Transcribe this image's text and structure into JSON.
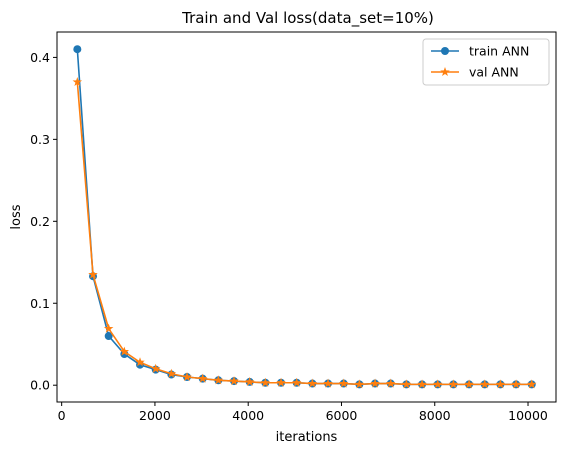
{
  "chart_data": {
    "type": "line",
    "title": "Train and Val loss(data_set=10%)",
    "xlabel": "iterations",
    "ylabel": "loss",
    "xlim": [
      -100,
      10600
    ],
    "ylim": [
      -0.0205,
      0.431
    ],
    "xticks": [
      0,
      2000,
      4000,
      6000,
      8000,
      10000
    ],
    "xtick_labels": [
      "0",
      "2000",
      "4000",
      "6000",
      "8000",
      "10000"
    ],
    "yticks": [
      0.0,
      0.1,
      0.2,
      0.3,
      0.4
    ],
    "ytick_labels": [
      "0.0",
      "0.1",
      "0.2",
      "0.3",
      "0.4"
    ],
    "grid": false,
    "legend_position": "top-right",
    "x": [
      336,
      672,
      1008,
      1344,
      1680,
      2016,
      2352,
      2688,
      3024,
      3360,
      3696,
      4032,
      4368,
      4704,
      5040,
      5376,
      5712,
      6048,
      6384,
      6720,
      7056,
      7392,
      7728,
      8064,
      8400,
      8736,
      9072,
      9408,
      9744,
      10080
    ],
    "series": [
      {
        "name": "train ANN",
        "color": "#1f77b4",
        "marker": "circle",
        "values": [
          0.41,
          0.133,
          0.06,
          0.038,
          0.025,
          0.019,
          0.013,
          0.01,
          0.008,
          0.006,
          0.005,
          0.004,
          0.003,
          0.003,
          0.003,
          0.002,
          0.002,
          0.002,
          0.001,
          0.002,
          0.002,
          0.001,
          0.001,
          0.001,
          0.001,
          0.001,
          0.001,
          0.001,
          0.001,
          0.001
        ]
      },
      {
        "name": "val ANN",
        "color": "#ff7f0e",
        "marker": "star",
        "values": [
          0.37,
          0.135,
          0.069,
          0.041,
          0.028,
          0.02,
          0.014,
          0.01,
          0.008,
          0.006,
          0.005,
          0.004,
          0.003,
          0.003,
          0.003,
          0.002,
          0.002,
          0.002,
          0.001,
          0.002,
          0.002,
          0.001,
          0.001,
          0.001,
          0.001,
          0.001,
          0.001,
          0.001,
          0.001,
          0.001
        ]
      }
    ]
  }
}
